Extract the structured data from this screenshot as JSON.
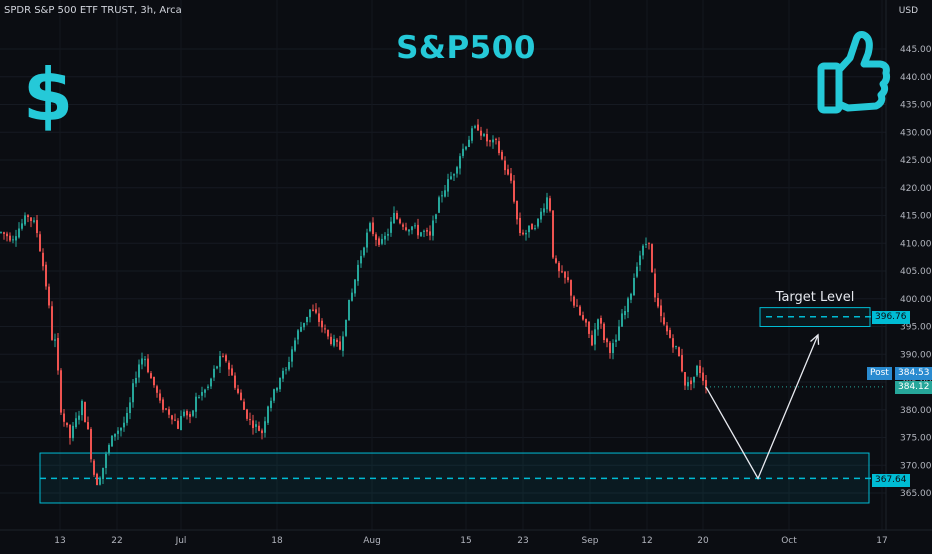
{
  "header": {
    "symbol": "SPDR S&P 500 ETF TRUST, 3h, Arca",
    "title": "S&P500",
    "currency": "USD"
  },
  "icons": {
    "left": "dollar-icon",
    "right": "thumbs-up-icon"
  },
  "annotations": {
    "target_label": "Target Level",
    "target_price": 396.76,
    "target_price_label": "396.76",
    "support_price": 367.64,
    "support_price_label": "367.64",
    "post_label": "Post",
    "post_price_label": "384.53",
    "last_price_label": "384.12"
  },
  "colors": {
    "up": "#26a69a",
    "down": "#ef5350",
    "accent": "#00bcd4",
    "title": "#25c9d8"
  },
  "chart_data": {
    "type": "candlestick",
    "y_axis": {
      "range": [
        360,
        450
      ],
      "ticks": [
        "365.00",
        "370.00",
        "375.00",
        "380.00",
        "385.00",
        "390.00",
        "395.00",
        "400.00",
        "405.00",
        "410.00",
        "415.00",
        "420.00",
        "425.00",
        "430.00",
        "435.00",
        "440.00",
        "445.00"
      ],
      "side": "right"
    },
    "x_axis": {
      "ticks": [
        "13",
        "22",
        "Jul",
        "18",
        "Aug",
        "15",
        "23",
        "Sep",
        "12",
        "20",
        "Oct",
        "17"
      ]
    },
    "price_path": [
      [
        0,
        412
      ],
      [
        12,
        411
      ],
      [
        20,
        413
      ],
      [
        28,
        415
      ],
      [
        36,
        413
      ],
      [
        44,
        405
      ],
      [
        48,
        400
      ],
      [
        52,
        393
      ],
      [
        56,
        392
      ],
      [
        60,
        381
      ],
      [
        64,
        378
      ],
      [
        70,
        375
      ],
      [
        76,
        378
      ],
      [
        82,
        381
      ],
      [
        88,
        376
      ],
      [
        93,
        369
      ],
      [
        97,
        367
      ],
      [
        102,
        369
      ],
      [
        108,
        373
      ],
      [
        115,
        376
      ],
      [
        122,
        377
      ],
      [
        128,
        379
      ],
      [
        133,
        384
      ],
      [
        138,
        388
      ],
      [
        144,
        390
      ],
      [
        150,
        386
      ],
      [
        155,
        384
      ],
      [
        160,
        381
      ],
      [
        166,
        380
      ],
      [
        172,
        379
      ],
      [
        178,
        377
      ],
      [
        184,
        380
      ],
      [
        190,
        378
      ],
      [
        196,
        382
      ],
      [
        202,
        383
      ],
      [
        208,
        384
      ],
      [
        214,
        387
      ],
      [
        220,
        389
      ],
      [
        226,
        389
      ],
      [
        232,
        386
      ],
      [
        238,
        383
      ],
      [
        244,
        380
      ],
      [
        250,
        378
      ],
      [
        256,
        377
      ],
      [
        262,
        376
      ],
      [
        268,
        381
      ],
      [
        274,
        383
      ],
      [
        280,
        386
      ],
      [
        286,
        387
      ],
      [
        292,
        391
      ],
      [
        298,
        394
      ],
      [
        304,
        396
      ],
      [
        310,
        398
      ],
      [
        316,
        397
      ],
      [
        322,
        395
      ],
      [
        328,
        393
      ],
      [
        334,
        392
      ],
      [
        340,
        391
      ],
      [
        346,
        397
      ],
      [
        352,
        401
      ],
      [
        358,
        406
      ],
      [
        364,
        410
      ],
      [
        370,
        413
      ],
      [
        376,
        411
      ],
      [
        382,
        410
      ],
      [
        388,
        412
      ],
      [
        394,
        415
      ],
      [
        400,
        414
      ],
      [
        406,
        413
      ],
      [
        412,
        413
      ],
      [
        418,
        412
      ],
      [
        424,
        412
      ],
      [
        430,
        411
      ],
      [
        436,
        416
      ],
      [
        442,
        419
      ],
      [
        448,
        421
      ],
      [
        454,
        423
      ],
      [
        460,
        426
      ],
      [
        466,
        428
      ],
      [
        472,
        430
      ],
      [
        478,
        431
      ],
      [
        484,
        429
      ],
      [
        490,
        428
      ],
      [
        496,
        428
      ],
      [
        502,
        425
      ],
      [
        508,
        422
      ],
      [
        512,
        421
      ],
      [
        516,
        415
      ],
      [
        520,
        412
      ],
      [
        526,
        412
      ],
      [
        532,
        413
      ],
      [
        538,
        414
      ],
      [
        544,
        417
      ],
      [
        549,
        419
      ],
      [
        553,
        408
      ],
      [
        557,
        405
      ],
      [
        562,
        404
      ],
      [
        568,
        403
      ],
      [
        574,
        399
      ],
      [
        580,
        397
      ],
      [
        586,
        395
      ],
      [
        592,
        392
      ],
      [
        598,
        397
      ],
      [
        604,
        393
      ],
      [
        610,
        391
      ],
      [
        616,
        392
      ],
      [
        620,
        396
      ],
      [
        626,
        398
      ],
      [
        632,
        402
      ],
      [
        636,
        406
      ],
      [
        640,
        408
      ],
      [
        646,
        410
      ],
      [
        650,
        411
      ],
      [
        653,
        401
      ],
      [
        658,
        398
      ],
      [
        664,
        395
      ],
      [
        670,
        393
      ],
      [
        676,
        391
      ],
      [
        680,
        389
      ],
      [
        686,
        384
      ],
      [
        690,
        385
      ],
      [
        694,
        386
      ],
      [
        698,
        388
      ],
      [
        702,
        386
      ],
      [
        706,
        384.5
      ]
    ],
    "projection": [
      {
        "x": 706,
        "price": 384.12
      },
      {
        "x": 758,
        "price": 367.64
      },
      {
        "x": 818,
        "price": 393.5
      }
    ]
  }
}
